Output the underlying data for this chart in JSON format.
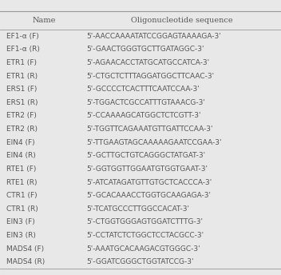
{
  "col1_header": "Name",
  "col2_header": "Oligonucleotide sequence",
  "rows": [
    [
      "EF1-α (F)",
      "5'-AACCAAAATATCCGGAGTAAAAGA-3'"
    ],
    [
      "EF1-α (R)",
      "5'-GAACTGGGTGCTTGATAGGC-3'"
    ],
    [
      "ETR1 (F)",
      "5'-AGAACACCTATGCATGCCATCA-3'"
    ],
    [
      "ETR1 (R)",
      "5'-CTGCTCTTTAGGATGGCTTCAAC-3'"
    ],
    [
      "ERS1 (F)",
      "5'-GCCCCTCACTTTCAATCCAA-3'"
    ],
    [
      "ERS1 (R)",
      "5'-TGGACTCGCCATTTGTAAACG-3'"
    ],
    [
      "ETR2 (F)",
      "5'-CCAAAAGCATGGCTCTCGTT-3'"
    ],
    [
      "ETR2 (R)",
      "5'-TGGTTCAGAAATGTTGATTCCAA-3'"
    ],
    [
      "EIN4 (F)",
      "5'-TTGAAGTAGCAAAAAGAATCCGAA-3'"
    ],
    [
      "EIN4 (R)",
      "5'-GCTTGCTGTCAGGGCTATGAT-3'"
    ],
    [
      "RTE1 (F)",
      "5'-GGTGGTTGGAATGTGGTGAAT-3'"
    ],
    [
      "RTE1 (R)",
      "5'-ATCATAGATGTTGTGCTCACCCA-3'"
    ],
    [
      "CTR1 (F)",
      "5'-GCACAAACCTGGTGCAAGAGA-3'"
    ],
    [
      "CTR1 (R)",
      "5'-TCATGCCCTTGGCCACAT-3'"
    ],
    [
      "EIN3 (F)",
      "5'-CTGGTGGGAGTGGATCTTTG-3'"
    ],
    [
      "EIN3 (R)",
      "5'-CCTATCTCTGGCTCCTACGCC-3'"
    ],
    [
      "MADS4 (F)",
      "5'-AAATGCACAAGACGTGGGC-3'"
    ],
    [
      "MADS4 (R)",
      "5'-GGATCGGGCTGGTATCCG-3'"
    ]
  ],
  "bg_color": "#e8e8e8",
  "header_line_color": "#999999",
  "text_color": "#555555",
  "font_size": 6.5,
  "header_font_size": 7.0,
  "figsize": [
    3.52,
    3.44
  ],
  "dpi": 100
}
